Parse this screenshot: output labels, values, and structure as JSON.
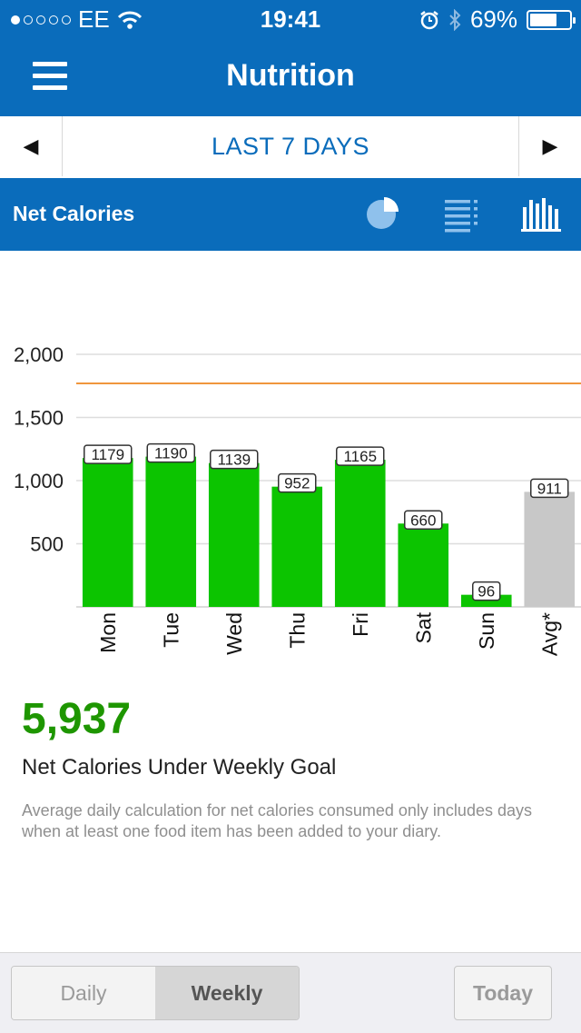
{
  "status_bar": {
    "carrier": "EE",
    "time": "19:41",
    "battery": "69%",
    "battery_level": 0.69,
    "signal_bars_filled": 1,
    "signal_bars_total": 5
  },
  "header": {
    "title": "Nutrition"
  },
  "date_nav": {
    "range_label": "LAST 7 DAYS"
  },
  "section": {
    "title": "Net Calories"
  },
  "chart_data": {
    "type": "bar",
    "categories": [
      "Mon",
      "Tue",
      "Wed",
      "Thu",
      "Fri",
      "Sat",
      "Sun",
      "Avg*"
    ],
    "values": [
      1179,
      1190,
      1139,
      952,
      1165,
      660,
      96,
      911
    ],
    "bar_colors": [
      "#0cc400",
      "#0cc400",
      "#0cc400",
      "#0cc400",
      "#0cc400",
      "#0cc400",
      "#0cc400",
      "#c8c8c8"
    ],
    "yticks": [
      500,
      1000,
      1500,
      2000
    ],
    "ytick_labels": [
      "500",
      "1,000",
      "1,500",
      "2,000"
    ],
    "ylim": [
      0,
      2000
    ],
    "goal_line": 1770,
    "goal_color": "#f0963c",
    "grid": true
  },
  "summary": {
    "value": "5,937",
    "label": "Net Calories Under Weekly Goal",
    "note": "Average daily calculation for net calories consumed only includes days when at least one food item has been added to your diary."
  },
  "bottom": {
    "daily_label": "Daily",
    "weekly_label": "Weekly",
    "today_label": "Today"
  },
  "colors": {
    "brand": "#0a6cbb",
    "bar": "#0cc400",
    "avg_bar": "#c8c8c8",
    "summary": "#1e9600"
  }
}
